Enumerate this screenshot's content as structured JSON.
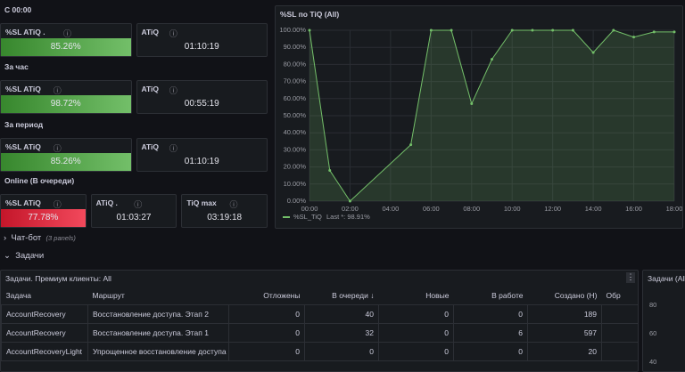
{
  "groups": [
    {
      "label": "С 00:00",
      "panels": [
        {
          "title": "%SL ATiQ .",
          "value": "85.26%"
        },
        {
          "title": "ATiQ",
          "value": "01:10:19"
        }
      ]
    },
    {
      "label": "За час",
      "panels": [
        {
          "title": "%SL ATiQ",
          "value": "98.72%"
        },
        {
          "title": "ATiQ",
          "value": "00:55:19"
        }
      ]
    },
    {
      "label": "За период",
      "panels": [
        {
          "title": "%SL ATiQ",
          "value": "85.26%"
        },
        {
          "title": "ATiQ",
          "value": "01:10:19"
        }
      ]
    },
    {
      "label": "Online (В очереди)",
      "panels": [
        {
          "title": "%SL ATiQ",
          "value": "77.78%"
        },
        {
          "title": "ATiQ .",
          "value": "01:03:27"
        },
        {
          "title": "TiQ max",
          "value": "03:19:18"
        }
      ]
    }
  ],
  "chart_data": {
    "type": "line",
    "title": "%SL по TiQ (All)",
    "x": [
      0,
      1,
      2,
      5,
      6,
      7,
      8,
      9,
      10,
      11,
      12,
      13,
      14,
      15,
      16,
      17,
      18
    ],
    "series": [
      {
        "name": "%SL_TiQ",
        "color": "#73bf69",
        "values": [
          100,
          18,
          0,
          33,
          100,
          100,
          57,
          83,
          100,
          100,
          100,
          100,
          87,
          100,
          96,
          99,
          99
        ]
      }
    ],
    "legend_last": "Last *: 98.91%",
    "xlim": [
      0,
      18
    ],
    "xticks": [
      {
        "value": 0,
        "label": "00:00"
      },
      {
        "value": 2,
        "label": "02:00"
      },
      {
        "value": 4,
        "label": "04:00"
      },
      {
        "value": 6,
        "label": "06:00"
      },
      {
        "value": 8,
        "label": "08:00"
      },
      {
        "value": 10,
        "label": "10:00"
      },
      {
        "value": 12,
        "label": "12:00"
      },
      {
        "value": 14,
        "label": "14:00"
      },
      {
        "value": 16,
        "label": "16:00"
      },
      {
        "value": 18,
        "label": "18:00"
      }
    ],
    "ylim": [
      0,
      100
    ],
    "yticks": [
      {
        "value": 0,
        "label": "0.00%"
      },
      {
        "value": 10,
        "label": "10.00%"
      },
      {
        "value": 20,
        "label": "20.00%"
      },
      {
        "value": 30,
        "label": "30.00%"
      },
      {
        "value": 40,
        "label": "40.00%"
      },
      {
        "value": 50,
        "label": "50.00%"
      },
      {
        "value": 60,
        "label": "60.00%"
      },
      {
        "value": 70,
        "label": "70.00%"
      },
      {
        "value": 80,
        "label": "80.00%"
      },
      {
        "value": 90,
        "label": "90.00%"
      },
      {
        "value": 100,
        "label": "100.00%"
      }
    ],
    "grid": true
  },
  "rows": [
    {
      "title": "Чат-бот",
      "note": "(3 panels)"
    },
    {
      "title": "Задачи"
    }
  ],
  "table": {
    "title": "Задачи. Премиум клиенты: All",
    "columns": [
      "Задача",
      "Маршрут",
      "Отложены",
      "В очереди ↓",
      "Новые",
      "В работе",
      "Создано (Н)",
      "Обр"
    ],
    "rows": [
      [
        "AccountRecovery",
        "Восстановление доступа. Этап 2",
        "0",
        "40",
        "0",
        "0",
        "189"
      ],
      [
        "AccountRecovery",
        "Восстановление доступа. Этап 1",
        "0",
        "32",
        "0",
        "6",
        "597"
      ],
      [
        "AccountRecoveryLight",
        "Упрощенное восстановление доступа",
        "0",
        "0",
        "0",
        "0",
        "20"
      ]
    ]
  },
  "side_panel": {
    "title": "Задачи (All",
    "ticks": [
      "80",
      "60",
      "40"
    ]
  }
}
